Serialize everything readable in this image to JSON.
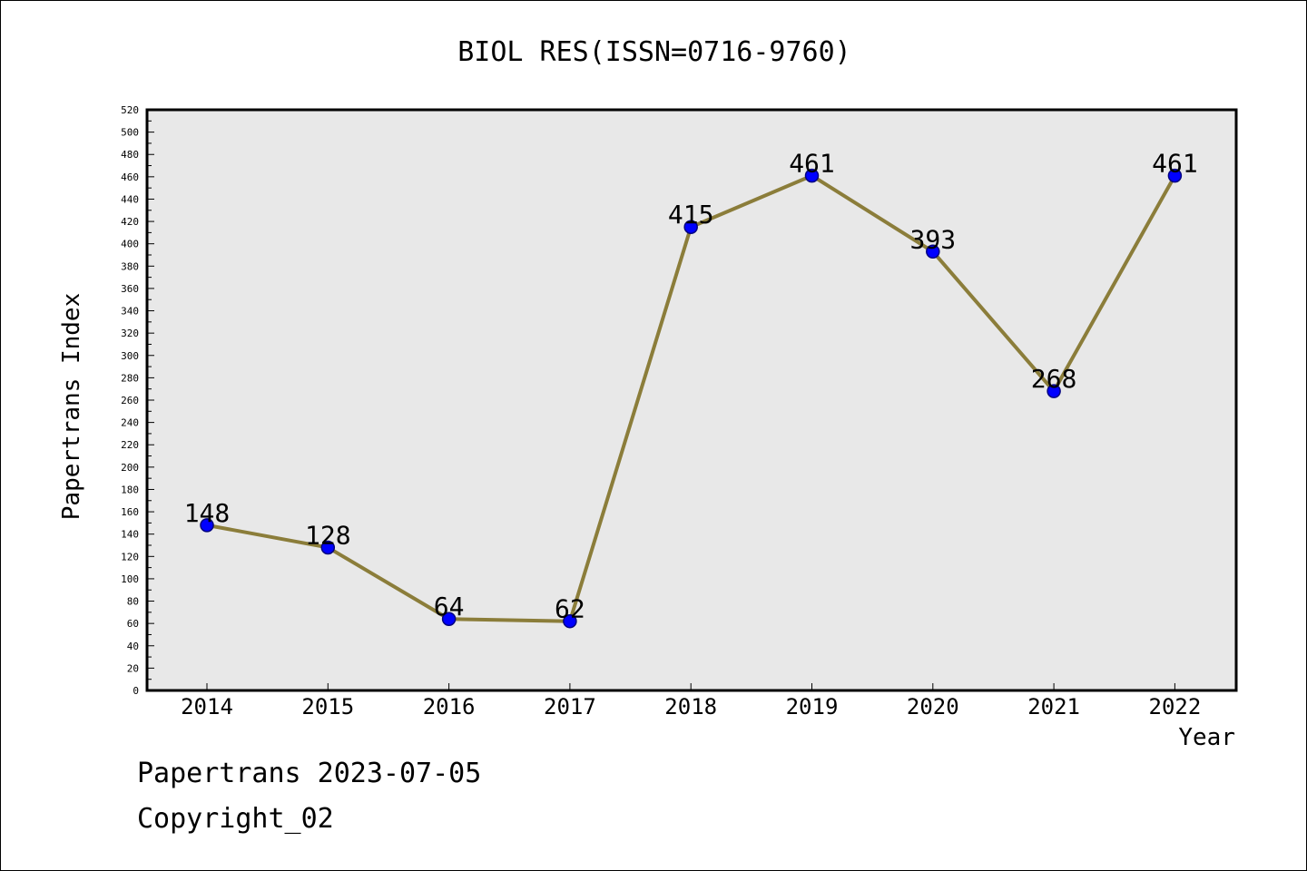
{
  "chart_data": {
    "type": "line",
    "title": "BIOL RES(ISSN=0716-9760)",
    "xlabel": "Year",
    "ylabel": "Papertrans Index",
    "categories": [
      "2014",
      "2015",
      "2016",
      "2017",
      "2018",
      "2019",
      "2020",
      "2021",
      "2022"
    ],
    "series": [
      {
        "values": [
          148,
          128,
          64,
          62,
          415,
          461,
          393,
          268,
          461
        ]
      }
    ],
    "ylim": [
      0,
      520
    ],
    "ytick_step": 20,
    "yticks": [
      "0",
      "20",
      "40",
      "60",
      "80",
      "100",
      "120",
      "140",
      "160",
      "180",
      "200",
      "220",
      "240",
      "260",
      "280",
      "300",
      "320",
      "340",
      "360",
      "380",
      "400",
      "420",
      "440",
      "460",
      "480",
      "500",
      "520"
    ],
    "grid": false,
    "data_labels": true,
    "colors": {
      "line": "#8B7D3A",
      "marker": "#0000FF",
      "marker_edge": "#000080",
      "plot_bg": "#E8E8E8"
    }
  },
  "footer": {
    "line1": "Papertrans 2023-07-05",
    "line2": "Copyright_02"
  }
}
